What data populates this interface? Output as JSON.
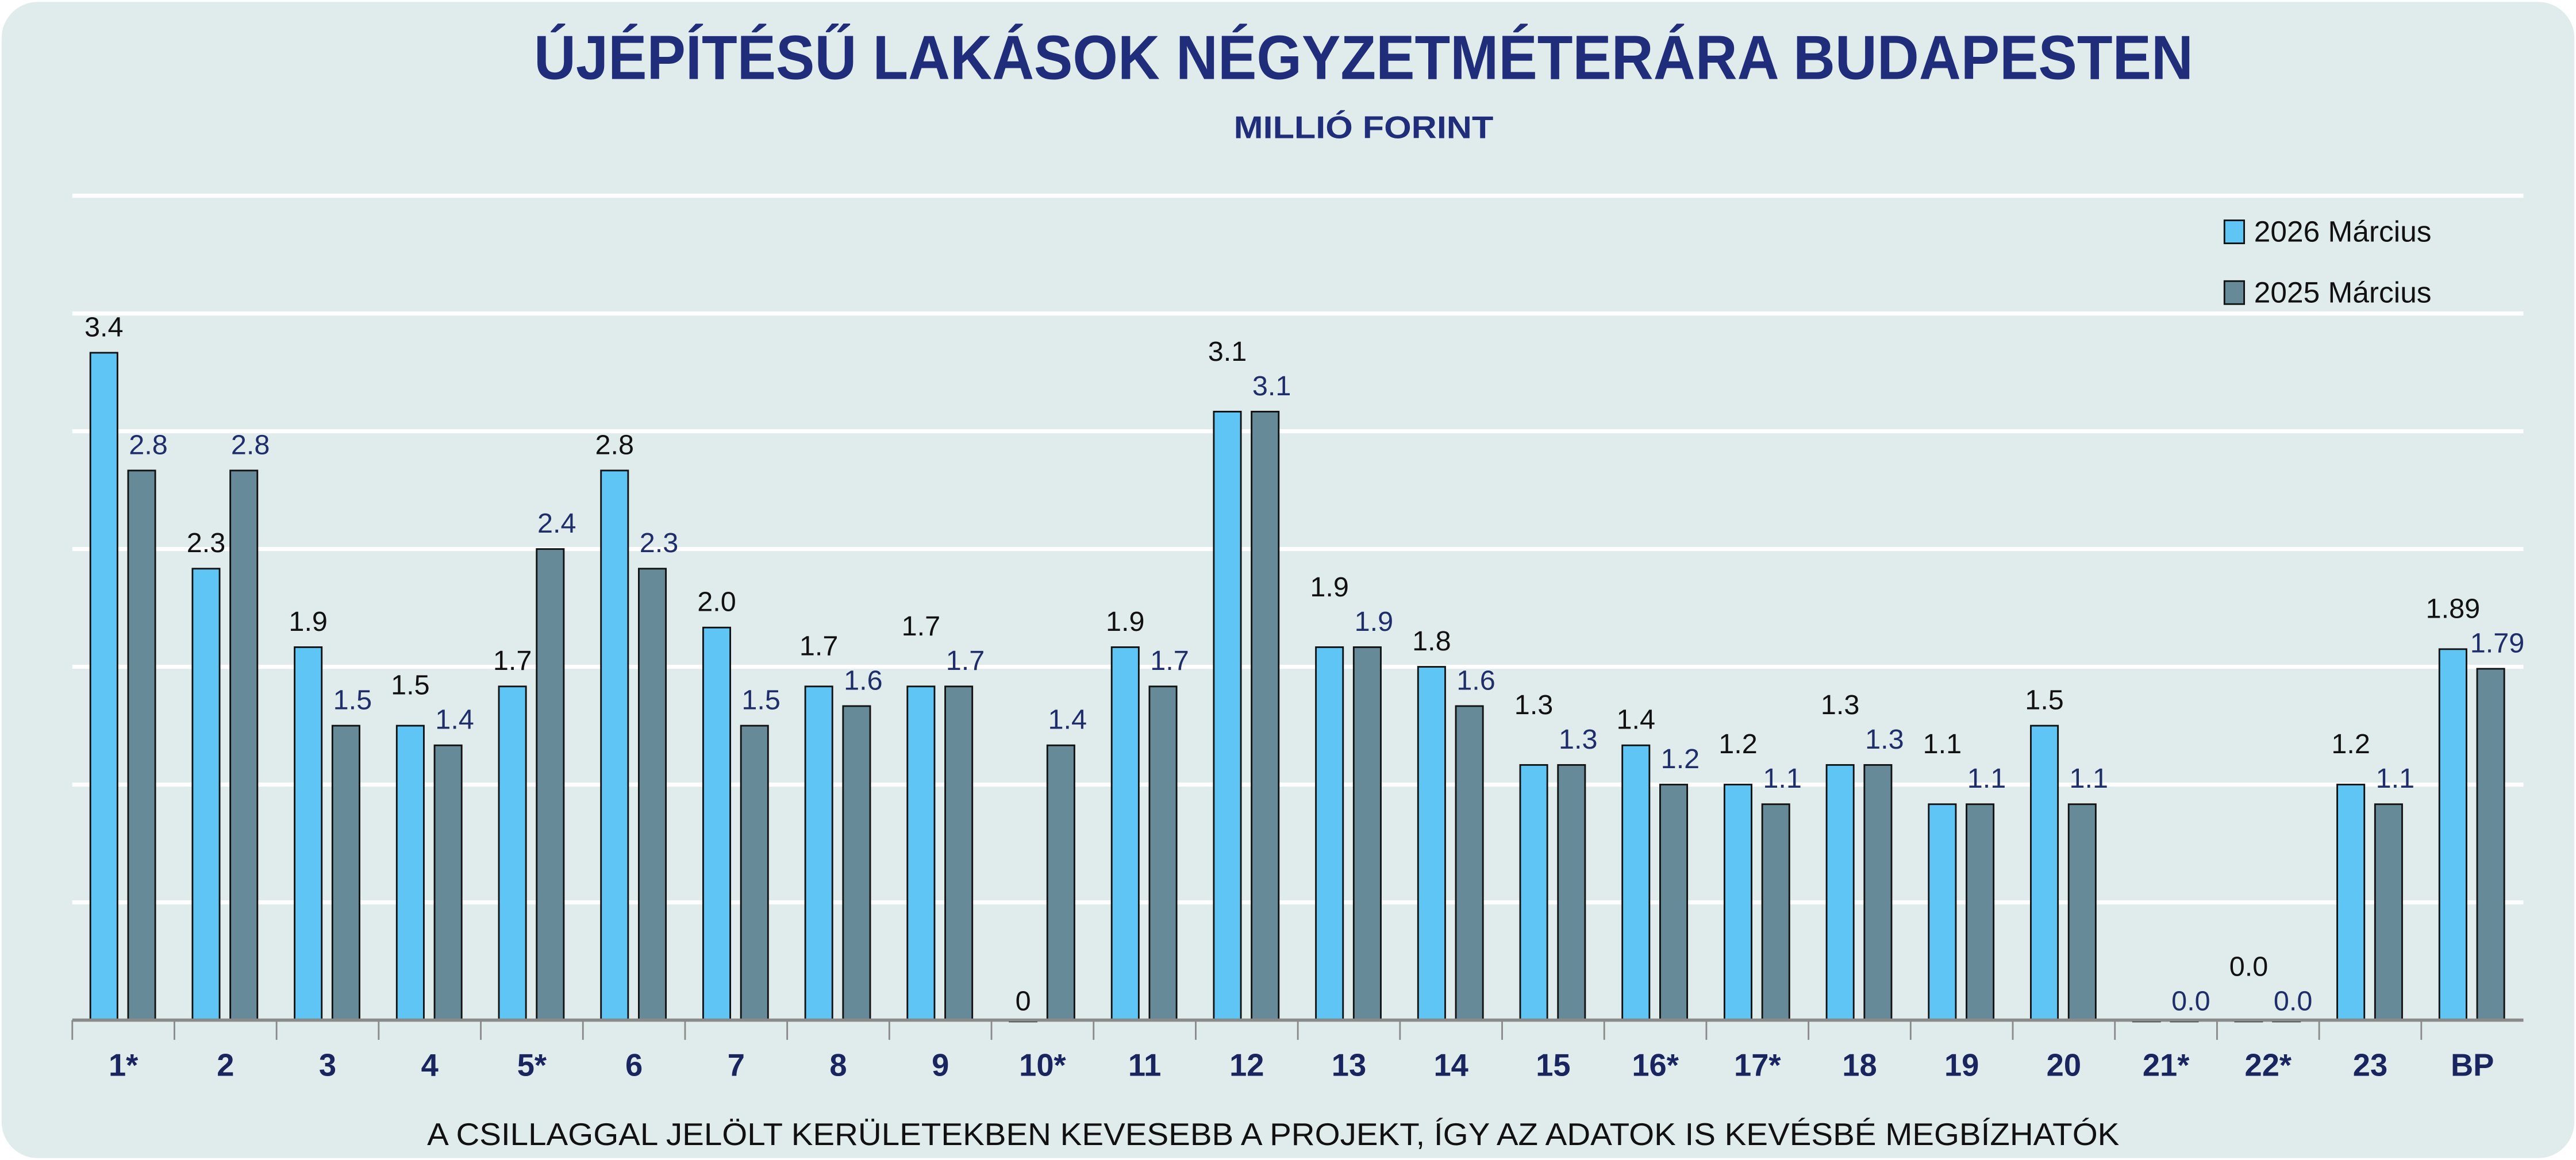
{
  "chart_data": {
    "type": "bar",
    "title": "ÚJÉPÍTÉSŰ LAKÁSOK NÉGYZETMÉTERÁRA BUDAPESTEN",
    "subtitle": "MILLIÓ FORINT",
    "footnote": "A CSILLAGGAL JELÖLT KERÜLETEKBEN KEVESEBB A PROJEKT, ÍGY AZ ADATOK IS KEVÉSBÉ MEGBÍZHATÓK",
    "xlabel": "",
    "ylabel": "",
    "ylim": [
      0,
      4.2
    ],
    "grid": true,
    "legend_position": "top-right",
    "categories": [
      "1*",
      "2",
      "3",
      "4",
      "5*",
      "6",
      "7",
      "8",
      "9",
      "10*",
      "11",
      "12",
      "13",
      "14",
      "15",
      "16*",
      "17*",
      "18",
      "19",
      "20",
      "21*",
      "22*",
      "23",
      "BP"
    ],
    "series": [
      {
        "name": "2026 Március",
        "color": "#5fc5f4",
        "label_color": "#111111",
        "values": [
          3.4,
          2.3,
          1.9,
          1.5,
          1.7,
          2.8,
          2.0,
          1.7,
          1.7,
          0.0,
          1.9,
          3.1,
          1.9,
          1.8,
          1.3,
          1.4,
          1.2,
          1.3,
          1.1,
          1.5,
          0.0,
          0.0,
          1.2,
          1.89
        ],
        "labels": [
          "3.4",
          "2.3",
          "1.9",
          "1.5",
          "1.7",
          "2.8",
          "2.0",
          "1.7",
          "1.7",
          "0",
          "1.9",
          "3.1",
          "1.9",
          "1.8",
          "1.3",
          "1.4",
          "1.2",
          "1.3",
          "1.1",
          "1.5",
          "",
          "0.0",
          "1.2",
          "1.89"
        ]
      },
      {
        "name": "2025 Március",
        "color": "#668a97",
        "label_color": "#1f2d6a",
        "values": [
          2.8,
          2.8,
          1.5,
          1.4,
          2.4,
          2.3,
          1.5,
          1.6,
          1.7,
          1.4,
          1.7,
          3.1,
          1.9,
          1.6,
          1.3,
          1.2,
          1.1,
          1.3,
          1.1,
          1.1,
          0.0,
          0.0,
          1.1,
          1.79
        ],
        "labels": [
          "2.8",
          "2.8",
          "1.5",
          "1.4",
          "2.4",
          "2.3",
          "1.5",
          "1.6",
          "1.7",
          "1.4",
          "1.7",
          "3.1",
          "1.9",
          "1.6",
          "1.3",
          "1.2",
          "1.1",
          "1.3",
          "1.1",
          "1.1",
          "0.0",
          "0.0",
          "1.1",
          "1.79"
        ]
      }
    ]
  },
  "colors": {
    "background": "#e0eceb",
    "title": "#1f2d7a",
    "tick": "#1a2560"
  }
}
